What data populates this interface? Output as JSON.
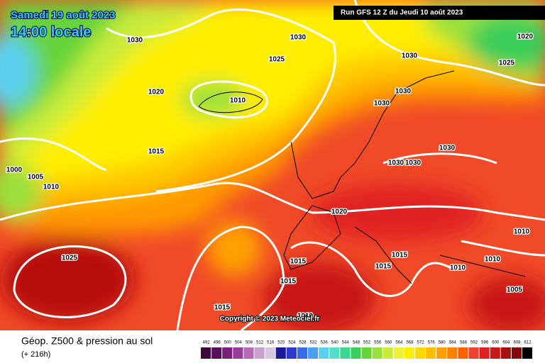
{
  "header": {
    "date": "Samedi 19 août 2023",
    "time": "14:00 locale",
    "run": "Run GFS 12 Z du Jeudi 10 août 2023"
  },
  "isobar_labels": [
    "1030",
    "1030",
    "1025",
    "1030",
    "1020",
    "1025",
    "1020",
    "1010",
    "1030",
    "1030",
    "1015",
    "1030",
    "1030",
    "1030",
    "1000",
    "1005",
    "1010",
    "1020",
    "1010",
    "1025",
    "1015",
    "1015",
    "1015",
    "1010",
    "1010",
    "1015",
    "1005",
    "1015",
    "1010"
  ],
  "copyright": "Copyright © 2023 Meteociel.fr",
  "footer": {
    "title": "Géop. Z500 & pression au sol",
    "lead": "(+ 216h)"
  },
  "legend": [
    "492",
    "496",
    "500",
    "504",
    "508",
    "512",
    "516",
    "520",
    "524",
    "528",
    "532",
    "536",
    "540",
    "544",
    "548",
    "552",
    "556",
    "560",
    "564",
    "568",
    "572",
    "576",
    "580",
    "584",
    "588",
    "592",
    "596",
    "600",
    "604",
    "608",
    "612"
  ]
}
